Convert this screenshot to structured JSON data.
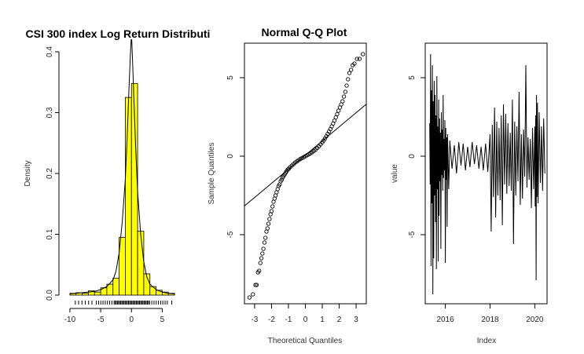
{
  "chart_data": [
    {
      "type": "histogram",
      "title": "CSI 300 index Log Return Distributi",
      "xlabel": "",
      "ylabel": "Density",
      "xlim": [
        -10.5,
        7.5
      ],
      "ylim": [
        0,
        0.4
      ],
      "x_ticks": [
        -10,
        -5,
        0,
        5
      ],
      "y_ticks": [
        0.0,
        0.1,
        0.2,
        0.3,
        0.4
      ],
      "bin_width": 1,
      "bins": [
        {
          "x0": -10,
          "x1": -9,
          "density": 0.003
        },
        {
          "x0": -9,
          "x1": -8,
          "density": 0.004
        },
        {
          "x0": -8,
          "x1": -7,
          "density": 0.003
        },
        {
          "x0": -7,
          "x1": -6,
          "density": 0.007
        },
        {
          "x0": -6,
          "x1": -5,
          "density": 0.005
        },
        {
          "x0": -5,
          "x1": -4,
          "density": 0.012
        },
        {
          "x0": -4,
          "x1": -3,
          "density": 0.018
        },
        {
          "x0": -3,
          "x1": -2,
          "density": 0.028
        },
        {
          "x0": -2,
          "x1": -1,
          "density": 0.095
        },
        {
          "x0": -1,
          "x1": 0,
          "density": 0.325
        },
        {
          "x0": 0,
          "x1": 1,
          "density": 0.348
        },
        {
          "x0": 1,
          "x1": 2,
          "density": 0.105
        },
        {
          "x0": 2,
          "x1": 3,
          "density": 0.035
        },
        {
          "x0": 3,
          "x1": 4,
          "density": 0.014
        },
        {
          "x0": 4,
          "x1": 5,
          "density": 0.008
        },
        {
          "x0": 5,
          "x1": 6,
          "density": 0.005
        },
        {
          "x0": 6,
          "x1": 7,
          "density": 0.003
        }
      ],
      "density_curve": {
        "x": [
          -10,
          -8,
          -6,
          -5,
          -4,
          -3,
          -2.5,
          -2,
          -1.5,
          -1,
          -0.7,
          -0.4,
          -0.2,
          -0.05,
          0.05,
          0.2,
          0.4,
          0.7,
          1,
          1.5,
          2,
          2.5,
          3,
          4,
          5,
          6,
          7
        ],
        "y": [
          0.002,
          0.004,
          0.006,
          0.009,
          0.014,
          0.025,
          0.04,
          0.07,
          0.12,
          0.19,
          0.26,
          0.34,
          0.39,
          0.42,
          0.42,
          0.38,
          0.32,
          0.24,
          0.17,
          0.1,
          0.055,
          0.03,
          0.018,
          0.009,
          0.005,
          0.003,
          0.002
        ]
      },
      "fill": "#ffff00",
      "rug": true
    },
    {
      "type": "scatter",
      "title": "Normal Q-Q Plot",
      "xlabel": "Theoretical Quantiles",
      "ylabel": "Sample Quantiles",
      "xlim": [
        -3.6,
        3.6
      ],
      "ylim": [
        -9.4,
        7.2
      ],
      "x_ticks": [
        -3,
        -2,
        -1,
        0,
        1,
        2,
        3
      ],
      "y_ticks": [
        -5,
        0,
        5
      ],
      "reference_line": {
        "intercept": 0.07,
        "slope": 0.9
      },
      "quantile_points": [
        [
          -3.3,
          -9.0
        ],
        [
          -3.1,
          -8.8
        ],
        [
          -2.95,
          -8.2
        ],
        [
          -2.88,
          -8.2
        ],
        [
          -2.8,
          -7.4
        ],
        [
          -2.73,
          -7.3
        ],
        [
          -2.66,
          -6.8
        ],
        [
          -2.6,
          -6.5
        ],
        [
          -2.54,
          -6.2
        ],
        [
          -2.48,
          -5.9
        ],
        [
          -2.42,
          -5.5
        ],
        [
          -2.36,
          -5.2
        ],
        [
          -2.3,
          -4.8
        ],
        [
          -2.24,
          -4.6
        ],
        [
          -2.18,
          -4.3
        ],
        [
          -2.12,
          -4.0
        ],
        [
          -2.06,
          -3.7
        ],
        [
          -2.0,
          -3.5
        ],
        [
          -1.94,
          -3.2
        ],
        [
          -1.88,
          -2.9
        ],
        [
          -1.82,
          -2.7
        ],
        [
          -1.76,
          -2.5
        ],
        [
          -1.7,
          -2.3
        ],
        [
          -1.64,
          -2.1
        ],
        [
          -1.58,
          -1.9
        ],
        [
          -1.52,
          -1.8
        ],
        [
          -1.46,
          -1.6
        ],
        [
          -1.4,
          -1.5
        ],
        [
          -1.34,
          -1.35
        ],
        [
          -1.28,
          -1.25
        ],
        [
          -1.22,
          -1.15
        ],
        [
          -1.16,
          -1.05
        ],
        [
          -1.1,
          -0.95
        ],
        [
          -1.04,
          -0.85
        ],
        [
          -0.98,
          -0.8
        ],
        [
          -0.9,
          -0.7
        ],
        [
          -0.8,
          -0.6
        ],
        [
          -0.7,
          -0.5
        ],
        [
          -0.6,
          -0.4
        ],
        [
          -0.5,
          -0.33
        ],
        [
          -0.4,
          -0.25
        ],
        [
          -0.3,
          -0.18
        ],
        [
          -0.2,
          -0.12
        ],
        [
          -0.1,
          -0.06
        ],
        [
          0.0,
          0.0
        ],
        [
          0.1,
          0.06
        ],
        [
          0.2,
          0.12
        ],
        [
          0.3,
          0.18
        ],
        [
          0.4,
          0.25
        ],
        [
          0.5,
          0.33
        ],
        [
          0.6,
          0.42
        ],
        [
          0.7,
          0.52
        ],
        [
          0.8,
          0.63
        ],
        [
          0.9,
          0.75
        ],
        [
          1.0,
          0.88
        ],
        [
          1.08,
          1.0
        ],
        [
          1.16,
          1.13
        ],
        [
          1.24,
          1.27
        ],
        [
          1.32,
          1.42
        ],
        [
          1.4,
          1.57
        ],
        [
          1.48,
          1.73
        ],
        [
          1.56,
          1.9
        ],
        [
          1.64,
          2.08
        ],
        [
          1.72,
          2.27
        ],
        [
          1.8,
          2.47
        ],
        [
          1.88,
          2.68
        ],
        [
          1.96,
          2.9
        ],
        [
          2.04,
          3.1
        ],
        [
          2.12,
          3.3
        ],
        [
          2.2,
          3.5
        ],
        [
          2.28,
          3.8
        ],
        [
          2.36,
          4.1
        ],
        [
          2.44,
          4.5
        ],
        [
          2.52,
          4.9
        ],
        [
          2.6,
          5.3
        ],
        [
          2.7,
          5.5
        ],
        [
          2.8,
          5.8
        ],
        [
          2.9,
          5.9
        ],
        [
          3.05,
          6.2
        ],
        [
          3.2,
          6.2
        ],
        [
          3.4,
          6.5
        ]
      ]
    },
    {
      "type": "line",
      "title": "",
      "xlabel": "Index",
      "ylabel": "value",
      "xlim": [
        2015.1,
        2020.55
      ],
      "ylim": [
        -9.4,
        7.2
      ],
      "x_ticks": [
        2016,
        2018,
        2020
      ],
      "y_ticks": [
        -5,
        0,
        5
      ],
      "series": [
        {
          "x": [
            2015.3,
            2015.32,
            2015.34,
            2015.36,
            2015.38,
            2015.4,
            2015.42,
            2015.44,
            2015.46,
            2015.48,
            2015.5,
            2015.52,
            2015.54,
            2015.56,
            2015.58,
            2015.6,
            2015.62,
            2015.64,
            2015.66,
            2015.68,
            2015.7,
            2015.72,
            2015.74,
            2015.76,
            2015.78,
            2015.8,
            2015.82,
            2015.84,
            2015.86,
            2015.88,
            2015.9,
            2015.92,
            2015.94,
            2015.96,
            2015.98,
            2016.0,
            2016.02,
            2016.04,
            2016.06,
            2016.08,
            2016.1,
            2016.15,
            2016.2,
            2016.3,
            2016.4,
            2016.5,
            2016.6,
            2016.7,
            2016.8,
            2016.9,
            2017.0,
            2017.1,
            2017.2,
            2017.3,
            2017.4,
            2017.5,
            2017.6,
            2017.7,
            2017.8,
            2017.9,
            2018.0,
            2018.05,
            2018.1,
            2018.15,
            2018.2,
            2018.25,
            2018.3,
            2018.35,
            2018.4,
            2018.45,
            2018.5,
            2018.55,
            2018.6,
            2018.65,
            2018.7,
            2018.75,
            2018.8,
            2018.85,
            2018.9,
            2018.95,
            2019.0,
            2019.05,
            2019.1,
            2019.15,
            2019.2,
            2019.25,
            2019.3,
            2019.35,
            2019.4,
            2019.45,
            2019.5,
            2019.55,
            2019.6,
            2019.65,
            2019.7,
            2019.75,
            2019.8,
            2019.85,
            2019.9,
            2019.95,
            2020.0,
            2020.02,
            2020.04,
            2020.06,
            2020.08,
            2020.1,
            2020.12,
            2020.15,
            2020.2,
            2020.25,
            2020.3,
            2020.35,
            2020.4,
            2020.45
          ],
          "values": [
            2.1,
            -1.8,
            6.5,
            -7.0,
            4.2,
            -3.0,
            5.8,
            -8.8,
            3.5,
            -6.5,
            4.8,
            -2.5,
            3.9,
            -4.2,
            2.6,
            -7.2,
            5.1,
            -2.1,
            1.9,
            -6.7,
            3.6,
            -3.8,
            2.4,
            -1.6,
            1.5,
            -5.9,
            2.8,
            -1.2,
            1.7,
            -2.2,
            3.9,
            -1.4,
            1.1,
            -0.9,
            2.3,
            -6.8,
            1.8,
            -1.5,
            1.2,
            -4.5,
            1.4,
            -2.1,
            1.0,
            -0.8,
            0.7,
            -1.1,
            0.9,
            -0.6,
            0.8,
            -0.9,
            0.6,
            -0.7,
            0.9,
            -0.5,
            0.7,
            -0.8,
            0.6,
            -0.9,
            0.8,
            -1.0,
            1.4,
            -4.8,
            2.0,
            -2.6,
            3.1,
            -3.9,
            2.2,
            -2.5,
            1.8,
            -2.8,
            2.6,
            -4.4,
            3.3,
            -1.8,
            2.7,
            -2.4,
            2.1,
            -1.9,
            1.5,
            -2.2,
            3.6,
            -5.6,
            2.2,
            -2.5,
            1.9,
            -1.6,
            4.1,
            -3.1,
            1.4,
            -2.7,
            1.7,
            -1.3,
            5.8,
            -2.0,
            1.2,
            -1.5,
            1.1,
            -3.3,
            1.8,
            -2.1,
            1.9,
            -3.2,
            2.6,
            -7.9,
            3.9,
            -2.6,
            3.4,
            -3.0,
            2.8,
            -1.7,
            1.9,
            -2.2,
            2.4,
            -1.1
          ]
        }
      ]
    }
  ]
}
